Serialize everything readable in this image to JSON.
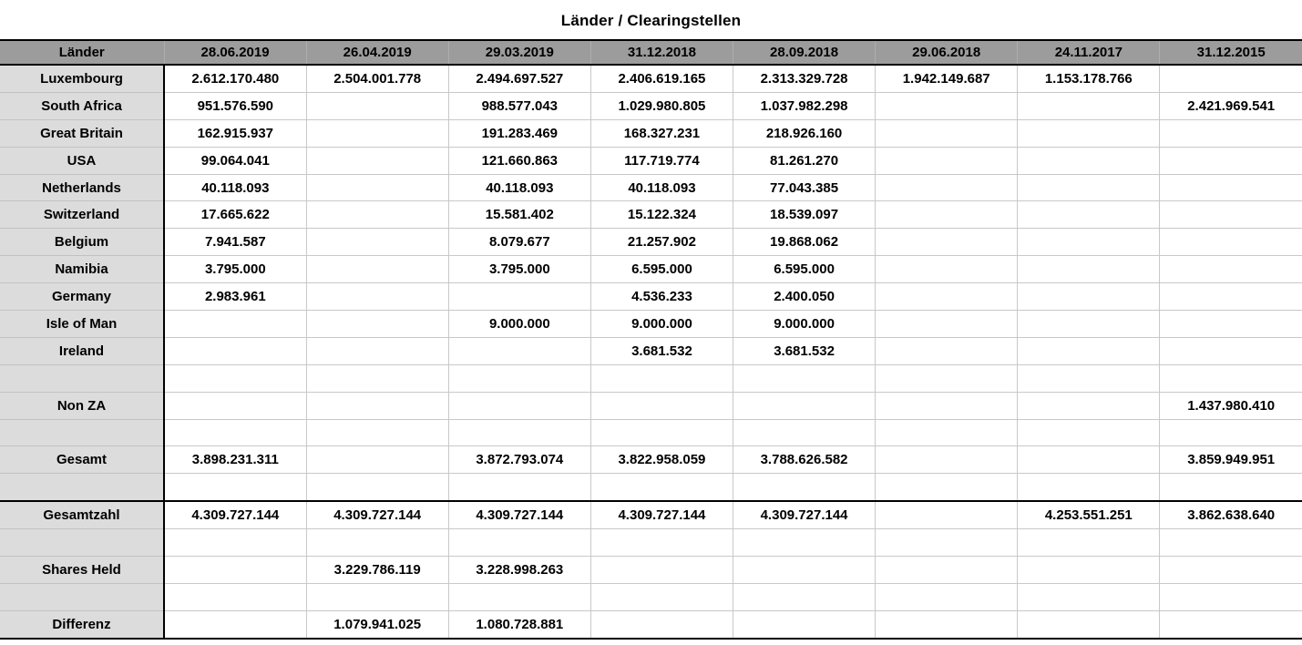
{
  "title": "Länder / Clearingstellen",
  "columns": [
    "Länder",
    "28.06.2019",
    "26.04.2019",
    "29.03.2019",
    "31.12.2018",
    "28.09.2018",
    "29.06.2018",
    "24.11.2017",
    "31.12.2015"
  ],
  "rows": [
    {
      "label": "Luxembourg",
      "strong_top": false,
      "values": [
        "2.612.170.480",
        "2.504.001.778",
        "2.494.697.527",
        "2.406.619.165",
        "2.313.329.728",
        "1.942.149.687",
        "1.153.178.766",
        ""
      ]
    },
    {
      "label": "South Africa",
      "strong_top": false,
      "values": [
        "951.576.590",
        "",
        "988.577.043",
        "1.029.980.805",
        "1.037.982.298",
        "",
        "",
        "2.421.969.541"
      ]
    },
    {
      "label": "Great Britain",
      "strong_top": false,
      "values": [
        "162.915.937",
        "",
        "191.283.469",
        "168.327.231",
        "218.926.160",
        "",
        "",
        ""
      ]
    },
    {
      "label": "USA",
      "strong_top": false,
      "values": [
        "99.064.041",
        "",
        "121.660.863",
        "117.719.774",
        "81.261.270",
        "",
        "",
        ""
      ]
    },
    {
      "label": "Netherlands",
      "strong_top": false,
      "values": [
        "40.118.093",
        "",
        "40.118.093",
        "40.118.093",
        "77.043.385",
        "",
        "",
        ""
      ]
    },
    {
      "label": "Switzerland",
      "strong_top": false,
      "values": [
        "17.665.622",
        "",
        "15.581.402",
        "15.122.324",
        "18.539.097",
        "",
        "",
        ""
      ]
    },
    {
      "label": "Belgium",
      "strong_top": false,
      "values": [
        "7.941.587",
        "",
        "8.079.677",
        "21.257.902",
        "19.868.062",
        "",
        "",
        ""
      ]
    },
    {
      "label": "Namibia",
      "strong_top": false,
      "values": [
        "3.795.000",
        "",
        "3.795.000",
        "6.595.000",
        "6.595.000",
        "",
        "",
        ""
      ]
    },
    {
      "label": "Germany",
      "strong_top": false,
      "values": [
        "2.983.961",
        "",
        "",
        "4.536.233",
        "2.400.050",
        "",
        "",
        ""
      ]
    },
    {
      "label": "Isle of Man",
      "strong_top": false,
      "values": [
        "",
        "",
        "9.000.000",
        "9.000.000",
        "9.000.000",
        "",
        "",
        ""
      ]
    },
    {
      "label": "Ireland",
      "strong_top": false,
      "values": [
        "",
        "",
        "",
        "3.681.532",
        "3.681.532",
        "",
        "",
        ""
      ]
    },
    {
      "label": "",
      "strong_top": false,
      "values": [
        "",
        "",
        "",
        "",
        "",
        "",
        "",
        ""
      ]
    },
    {
      "label": "Non ZA",
      "strong_top": false,
      "values": [
        "",
        "",
        "",
        "",
        "",
        "",
        "",
        "1.437.980.410"
      ]
    },
    {
      "label": "",
      "strong_top": false,
      "values": [
        "",
        "",
        "",
        "",
        "",
        "",
        "",
        ""
      ]
    },
    {
      "label": "Gesamt",
      "strong_top": false,
      "values": [
        "3.898.231.311",
        "",
        "3.872.793.074",
        "3.822.958.059",
        "3.788.626.582",
        "",
        "",
        "3.859.949.951"
      ]
    },
    {
      "label": "",
      "strong_top": false,
      "values": [
        "",
        "",
        "",
        "",
        "",
        "",
        "",
        ""
      ]
    },
    {
      "label": "Gesamtzahl",
      "strong_top": true,
      "values": [
        "4.309.727.144",
        "4.309.727.144",
        "4.309.727.144",
        "4.309.727.144",
        "4.309.727.144",
        "",
        "4.253.551.251",
        "3.862.638.640"
      ]
    },
    {
      "label": "",
      "strong_top": false,
      "values": [
        "",
        "",
        "",
        "",
        "",
        "",
        "",
        ""
      ]
    },
    {
      "label": "Shares Held",
      "strong_top": false,
      "values": [
        "",
        "3.229.786.119",
        "3.228.998.263",
        "",
        "",
        "",
        "",
        ""
      ]
    },
    {
      "label": "",
      "strong_top": false,
      "values": [
        "",
        "",
        "",
        "",
        "",
        "",
        "",
        ""
      ]
    },
    {
      "label": "Differenz",
      "strong_top": false,
      "values": [
        "",
        "1.079.941.025",
        "1.080.728.881",
        "",
        "",
        "",
        "",
        ""
      ]
    }
  ],
  "colors": {
    "header_bg": "#9c9c9c",
    "label_column_bg": "#dcdcdc",
    "grid_line": "#c8c8c8",
    "strong_border": "#000000",
    "text": "#000000"
  }
}
